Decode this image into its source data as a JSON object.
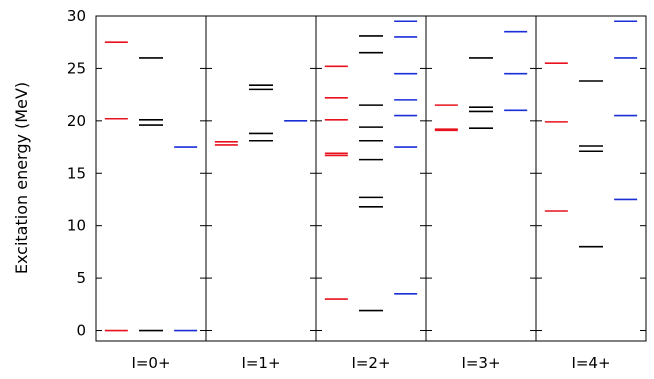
{
  "chart_data": {
    "type": "level-scheme",
    "title": "",
    "xlabel": "",
    "ylabel": "Excitation energy (MeV)",
    "ylim": [
      -1,
      30
    ],
    "yticks": [
      0,
      5,
      10,
      15,
      20,
      25,
      30
    ],
    "grid": false,
    "legend": "none",
    "categories": [
      "I=0+",
      "I=1+",
      "I=2+",
      "I=3+",
      "I=4+"
    ],
    "series": [
      {
        "color": "#e8121e",
        "levels": [
          [
            0.0,
            20.2,
            27.5
          ],
          [
            17.7,
            18.0
          ],
          [
            3.0,
            16.7,
            16.9,
            20.1,
            22.2,
            25.2
          ],
          [
            19.1,
            19.2,
            21.5
          ],
          [
            11.4,
            19.9,
            25.5
          ]
        ]
      },
      {
        "color": "#000000",
        "levels": [
          [
            0.0,
            19.6,
            20.1,
            26.0
          ],
          [
            18.1,
            18.8,
            23.0,
            23.4
          ],
          [
            1.9,
            11.8,
            12.7,
            16.3,
            18.1,
            19.4,
            21.5,
            26.5,
            28.1
          ],
          [
            19.3,
            20.9,
            21.3,
            26.0
          ],
          [
            8.0,
            17.1,
            17.6,
            23.8
          ]
        ]
      },
      {
        "color": "#1a2ed8",
        "levels": [
          [
            0.0,
            17.5
          ],
          [
            20.0
          ],
          [
            3.5,
            17.5,
            20.5,
            22.0,
            24.5,
            28.0,
            29.5
          ],
          [
            21.0,
            24.5,
            28.5
          ],
          [
            12.5,
            20.5,
            26.0,
            29.5
          ]
        ]
      }
    ]
  }
}
